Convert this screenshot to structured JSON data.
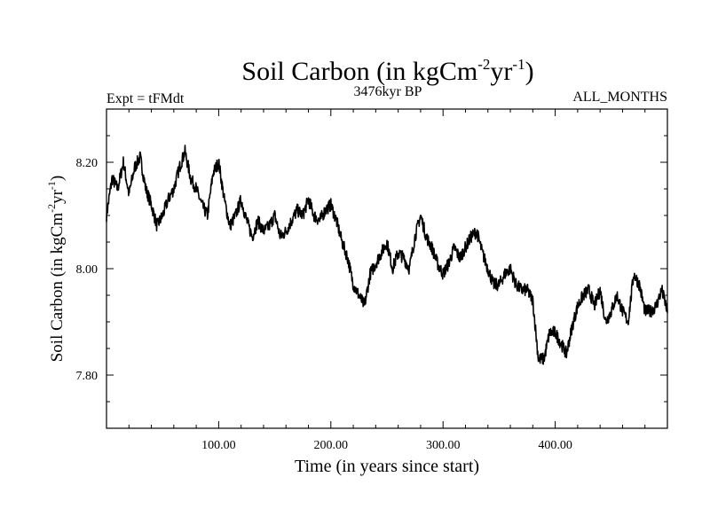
{
  "chart_data": {
    "type": "line",
    "title": {
      "main": "Soil Carbon (in kgCm",
      "sup1": "-2",
      "mid": "yr",
      "sup2": "-1",
      "end": ")"
    },
    "subtitle_left": "Expt = tFMdt",
    "subtitle_center": "3476kyr BP",
    "subtitle_right": "ALL_MONTHS",
    "xlabel": "Time (in years since start)",
    "ylabel": {
      "main": "Soil Carbon (in kgCm",
      "sup1": "-2",
      "mid": "yr",
      "sup2": "-1",
      "end": ")"
    },
    "xlim": [
      0,
      500
    ],
    "ylim": [
      7.7,
      8.3
    ],
    "x_ticks": [
      100,
      200,
      300,
      400
    ],
    "x_tick_labels": [
      "100.00",
      "200.00",
      "300.00",
      "400.00"
    ],
    "y_ticks": [
      7.8,
      8.0,
      8.2
    ],
    "y_tick_labels": [
      "7.80",
      "8.00",
      "8.20"
    ],
    "grid": false,
    "series": [
      {
        "name": "Soil Carbon",
        "color": "#000000",
        "x": [
          0,
          5,
          10,
          15,
          20,
          25,
          30,
          35,
          40,
          45,
          50,
          55,
          60,
          65,
          70,
          75,
          80,
          85,
          90,
          95,
          100,
          105,
          110,
          115,
          120,
          125,
          130,
          135,
          140,
          145,
          150,
          155,
          160,
          165,
          170,
          175,
          180,
          185,
          190,
          195,
          200,
          205,
          210,
          215,
          220,
          225,
          230,
          235,
          240,
          245,
          250,
          255,
          260,
          265,
          270,
          275,
          280,
          285,
          290,
          295,
          300,
          305,
          310,
          315,
          320,
          325,
          330,
          335,
          340,
          345,
          350,
          355,
          360,
          365,
          370,
          375,
          380,
          385,
          390,
          395,
          400,
          405,
          410,
          415,
          420,
          425,
          430,
          435,
          440,
          445,
          450,
          455,
          460,
          465,
          470,
          475,
          480,
          485,
          490,
          495,
          500
        ],
        "values": [
          8.1,
          8.17,
          8.15,
          8.2,
          8.14,
          8.19,
          8.21,
          8.15,
          8.12,
          8.08,
          8.1,
          8.13,
          8.15,
          8.19,
          8.22,
          8.17,
          8.15,
          8.12,
          8.1,
          8.18,
          8.2,
          8.13,
          8.08,
          8.1,
          8.13,
          8.09,
          8.06,
          8.09,
          8.07,
          8.08,
          8.1,
          8.06,
          8.07,
          8.09,
          8.11,
          8.1,
          8.13,
          8.1,
          8.09,
          8.11,
          8.12,
          8.09,
          8.05,
          8.02,
          7.97,
          7.95,
          7.93,
          7.99,
          8.01,
          8.03,
          8.05,
          8.0,
          8.03,
          8.02,
          8.0,
          8.06,
          8.1,
          8.06,
          8.04,
          8.01,
          7.99,
          8.01,
          8.04,
          8.02,
          8.04,
          8.06,
          8.07,
          8.03,
          8.0,
          7.97,
          7.97,
          7.99,
          8.0,
          7.97,
          7.96,
          7.96,
          7.94,
          7.83,
          7.83,
          7.88,
          7.88,
          7.86,
          7.84,
          7.89,
          7.93,
          7.95,
          7.96,
          7.93,
          7.96,
          7.9,
          7.92,
          7.95,
          7.92,
          7.9,
          7.99,
          7.97,
          7.92,
          7.92,
          7.93,
          7.96,
          7.92
        ],
        "noise_amplitude": 0.012
      }
    ]
  }
}
